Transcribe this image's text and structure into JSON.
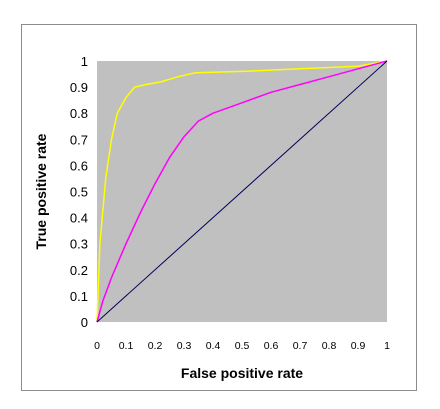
{
  "chart_data": {
    "type": "line",
    "title": "",
    "xlabel": "False positive rate",
    "ylabel": "True positive rate",
    "xlim": [
      0,
      1
    ],
    "ylim": [
      0,
      1
    ],
    "x_ticks": [
      "0",
      "0.1",
      "0.2",
      "0.3",
      "0.4",
      "0.5",
      "0.6",
      "0.7",
      "0.8",
      "0.9",
      "1"
    ],
    "y_ticks": [
      "0",
      "0.1",
      "0.2",
      "0.3",
      "0.4",
      "0.5",
      "0.6",
      "0.7",
      "0.8",
      "0.9",
      "1"
    ],
    "grid": false,
    "legend": "none",
    "plot_background": "#c0c0c0",
    "series": [
      {
        "color": "#ffff00",
        "x": [
          0,
          0.01,
          0.03,
          0.05,
          0.07,
          0.1,
          0.13,
          0.17,
          0.22,
          0.28,
          0.34,
          0.5,
          0.7,
          0.9,
          1.0
        ],
        "y": [
          0,
          0.3,
          0.55,
          0.7,
          0.8,
          0.86,
          0.9,
          0.91,
          0.92,
          0.94,
          0.955,
          0.96,
          0.97,
          0.98,
          1.0
        ]
      },
      {
        "color": "#ff00ff",
        "x": [
          0,
          0.02,
          0.05,
          0.1,
          0.15,
          0.2,
          0.25,
          0.3,
          0.35,
          0.4,
          0.5,
          0.6,
          0.7,
          0.8,
          0.9,
          1.0
        ],
        "y": [
          0,
          0.08,
          0.17,
          0.3,
          0.42,
          0.53,
          0.63,
          0.71,
          0.77,
          0.8,
          0.84,
          0.88,
          0.91,
          0.94,
          0.97,
          1.0
        ]
      },
      {
        "color": "#00005a",
        "x": [
          0,
          1
        ],
        "y": [
          0,
          1
        ]
      }
    ]
  }
}
